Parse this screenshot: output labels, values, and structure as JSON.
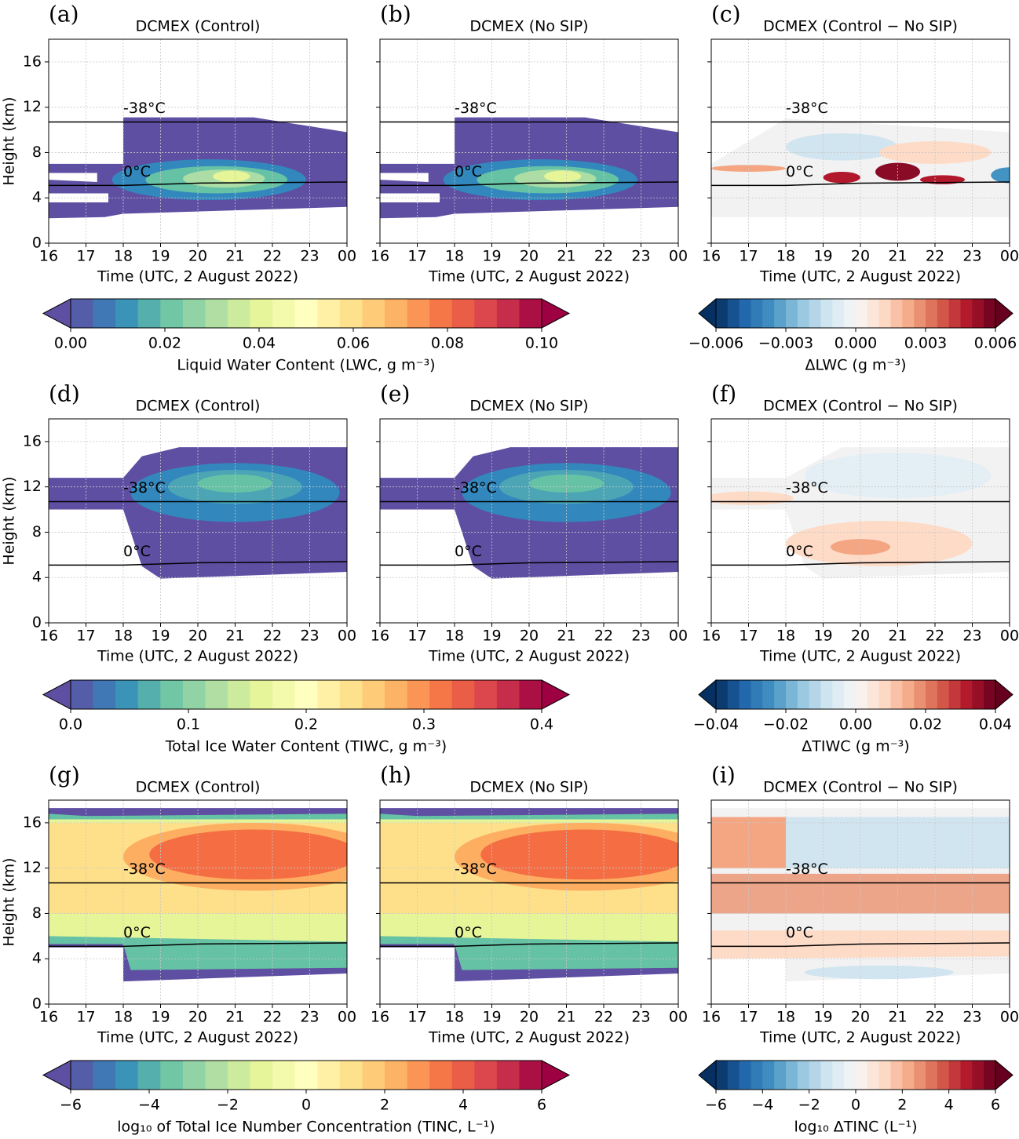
{
  "chart_data": [
    {
      "type": "contour",
      "letter": "(a)",
      "title": "DCMEX (Control)",
      "xlabel": "Time (UTC, 2 August 2022)",
      "ylabel": "Height (km)",
      "xlim": [
        16,
        24
      ],
      "xticks": [
        16,
        17,
        18,
        19,
        20,
        21,
        22,
        23,
        {
          "value": 24,
          "label": "00"
        }
      ],
      "ylim": [
        0,
        18
      ],
      "yticks": [
        0,
        4,
        8,
        12,
        16
      ],
      "grid": true,
      "isotherms": [
        {
          "name": "-38°C",
          "x": [
            16,
            24
          ],
          "values": [
            10.7,
            10.7
          ]
        },
        {
          "name": "0°C",
          "x": [
            16,
            18,
            20,
            22,
            24
          ],
          "values": [
            5.1,
            5.1,
            5.3,
            5.35,
            5.4
          ]
        }
      ]
    },
    {
      "type": "contour",
      "letter": "(b)",
      "title": "DCMEX (No SIP)",
      "xlabel": "Time (UTC, 2 August 2022)",
      "xlim": [
        16,
        24
      ],
      "xticks": [
        16,
        17,
        18,
        19,
        20,
        21,
        22,
        23,
        {
          "value": 24,
          "label": "00"
        }
      ],
      "ylim": [
        0,
        18
      ],
      "yticks": [
        0,
        4,
        8,
        12,
        16
      ],
      "grid": true,
      "isotherms": [
        {
          "name": "-38°C",
          "x": [
            16,
            24
          ],
          "values": [
            10.7,
            10.7
          ]
        },
        {
          "name": "0°C",
          "x": [
            16,
            18,
            20,
            22,
            24
          ],
          "values": [
            5.1,
            5.1,
            5.3,
            5.35,
            5.4
          ]
        }
      ]
    },
    {
      "type": "contour",
      "letter": "(c)",
      "title": "DCMEX (Control − No SIP)",
      "xlabel": "Time (UTC, 2 August 2022)",
      "xlim": [
        16,
        24
      ],
      "xticks": [
        16,
        17,
        18,
        19,
        20,
        21,
        22,
        23,
        {
          "value": 24,
          "label": "00"
        }
      ],
      "ylim": [
        0,
        18
      ],
      "yticks": [
        0,
        4,
        8,
        12,
        16
      ],
      "grid": true,
      "isotherms": [
        {
          "name": "-38°C",
          "x": [
            16,
            24
          ],
          "values": [
            10.7,
            10.7
          ]
        },
        {
          "name": "0°C",
          "x": [
            16,
            18,
            20,
            22,
            24
          ],
          "values": [
            5.1,
            5.1,
            5.3,
            5.35,
            5.4
          ]
        }
      ]
    },
    {
      "type": "contour",
      "letter": "(d)",
      "title": "DCMEX (Control)",
      "xlabel": "Time (UTC, 2 August 2022)",
      "ylabel": "Height (km)",
      "xlim": [
        16,
        24
      ],
      "xticks": [
        16,
        17,
        18,
        19,
        20,
        21,
        22,
        23,
        {
          "value": 24,
          "label": "00"
        }
      ],
      "ylim": [
        0,
        18
      ],
      "yticks": [
        0,
        4,
        8,
        12,
        16
      ],
      "grid": true,
      "isotherms": [
        {
          "name": "-38°C",
          "x": [
            16,
            24
          ],
          "values": [
            10.7,
            10.7
          ]
        },
        {
          "name": "0°C",
          "x": [
            16,
            18,
            20,
            22,
            24
          ],
          "values": [
            5.1,
            5.1,
            5.3,
            5.35,
            5.4
          ]
        }
      ]
    },
    {
      "type": "contour",
      "letter": "(e)",
      "title": "DCMEX (No SIP)",
      "xlabel": "Time (UTC, 2 August 2022)",
      "xlim": [
        16,
        24
      ],
      "xticks": [
        16,
        17,
        18,
        19,
        20,
        21,
        22,
        23,
        {
          "value": 24,
          "label": "00"
        }
      ],
      "ylim": [
        0,
        18
      ],
      "yticks": [
        0,
        4,
        8,
        12,
        16
      ],
      "grid": true,
      "isotherms": [
        {
          "name": "-38°C",
          "x": [
            16,
            24
          ],
          "values": [
            10.7,
            10.7
          ]
        },
        {
          "name": "0°C",
          "x": [
            16,
            18,
            20,
            22,
            24
          ],
          "values": [
            5.1,
            5.1,
            5.3,
            5.35,
            5.4
          ]
        }
      ]
    },
    {
      "type": "contour",
      "letter": "(f)",
      "title": "DCMEX (Control − No SIP)",
      "xlabel": "Time (UTC, 2 August 2022)",
      "xlim": [
        16,
        24
      ],
      "xticks": [
        16,
        17,
        18,
        19,
        20,
        21,
        22,
        23,
        {
          "value": 24,
          "label": "00"
        }
      ],
      "ylim": [
        0,
        18
      ],
      "yticks": [
        0,
        4,
        8,
        12,
        16
      ],
      "grid": true,
      "isotherms": [
        {
          "name": "-38°C",
          "x": [
            16,
            24
          ],
          "values": [
            10.7,
            10.7
          ]
        },
        {
          "name": "0°C",
          "x": [
            16,
            18,
            20,
            22,
            24
          ],
          "values": [
            5.1,
            5.1,
            5.3,
            5.35,
            5.4
          ]
        }
      ]
    },
    {
      "type": "contour",
      "letter": "(g)",
      "title": "DCMEX (Control)",
      "xlabel": "Time (UTC, 2 August 2022)",
      "ylabel": "Height (km)",
      "xlim": [
        16,
        24
      ],
      "xticks": [
        16,
        17,
        18,
        19,
        20,
        21,
        22,
        23,
        {
          "value": 24,
          "label": "00"
        }
      ],
      "ylim": [
        0,
        18
      ],
      "yticks": [
        0,
        4,
        8,
        12,
        16
      ],
      "grid": true,
      "isotherms": [
        {
          "name": "-38°C",
          "x": [
            16,
            24
          ],
          "values": [
            10.7,
            10.7
          ]
        },
        {
          "name": "0°C",
          "x": [
            16,
            18,
            20,
            22,
            24
          ],
          "values": [
            5.1,
            5.1,
            5.3,
            5.35,
            5.4
          ]
        }
      ]
    },
    {
      "type": "contour",
      "letter": "(h)",
      "title": "DCMEX (No SIP)",
      "xlabel": "Time (UTC, 2 August 2022)",
      "xlim": [
        16,
        24
      ],
      "xticks": [
        16,
        17,
        18,
        19,
        20,
        21,
        22,
        23,
        {
          "value": 24,
          "label": "00"
        }
      ],
      "ylim": [
        0,
        18
      ],
      "yticks": [
        0,
        4,
        8,
        12,
        16
      ],
      "grid": true,
      "isotherms": [
        {
          "name": "-38°C",
          "x": [
            16,
            24
          ],
          "values": [
            10.7,
            10.7
          ]
        },
        {
          "name": "0°C",
          "x": [
            16,
            18,
            20,
            22,
            24
          ],
          "values": [
            5.1,
            5.1,
            5.3,
            5.35,
            5.4
          ]
        }
      ]
    },
    {
      "type": "contour",
      "letter": "(i)",
      "title": "DCMEX (Control − No SIP)",
      "xlabel": "Time (UTC, 2 August 2022)",
      "xlim": [
        16,
        24
      ],
      "xticks": [
        16,
        17,
        18,
        19,
        20,
        21,
        22,
        23,
        {
          "value": 24,
          "label": "00"
        }
      ],
      "ylim": [
        0,
        18
      ],
      "yticks": [
        0,
        4,
        8,
        12,
        16
      ],
      "grid": true,
      "isotherms": [
        {
          "name": "-38°C",
          "x": [
            16,
            24
          ],
          "values": [
            10.7,
            10.7
          ]
        },
        {
          "name": "0°C",
          "x": [
            16,
            18,
            20,
            22,
            24
          ],
          "values": [
            5.1,
            5.1,
            5.3,
            5.35,
            5.4
          ]
        }
      ]
    }
  ],
  "colorbars": [
    {
      "label": "Liquid Water Content (LWC, g m⁻³)",
      "colormap": "Spectral_r",
      "lim": [
        0,
        0.1
      ],
      "ticks": [
        {
          "value": 0,
          "label": "0.00"
        },
        0.02,
        0.04,
        0.06,
        0.08,
        {
          "value": 0.1,
          "label": "0.10"
        }
      ]
    },
    {
      "label": "ΔLWC (g m⁻³)",
      "colormap": "RdBu_r",
      "lim": [
        -0.006,
        0.006
      ],
      "ticks": [
        {
          "value": -0.006,
          "label": "−0.006"
        },
        {
          "value": -0.003,
          "label": "−0.003"
        },
        {
          "value": 0,
          "label": "0.000"
        },
        0.003,
        0.006
      ]
    },
    {
      "label": "Total Ice Water Content (TIWC, g m⁻³)",
      "colormap": "Spectral_r",
      "lim": [
        0,
        0.4
      ],
      "ticks": [
        {
          "value": 0,
          "label": "0.0"
        },
        0.1,
        0.2,
        0.3,
        0.4
      ]
    },
    {
      "label": "ΔTIWC (g m⁻³)",
      "colormap": "RdBu_r",
      "lim": [
        -0.04,
        0.04
      ],
      "ticks": [
        {
          "value": -0.04,
          "label": "−0.04"
        },
        {
          "value": -0.02,
          "label": "−0.02"
        },
        {
          "value": 0,
          "label": "0.00"
        },
        0.02,
        0.04
      ]
    },
    {
      "label": "log₁₀ of Total Ice Number Concentration (TINC, L⁻¹)",
      "colormap": "Spectral_r",
      "lim": [
        -6,
        6
      ],
      "ticks": [
        {
          "value": -6,
          "label": "−6"
        },
        {
          "value": -4,
          "label": "−4"
        },
        {
          "value": -2,
          "label": "−2"
        },
        0,
        2,
        4,
        6
      ]
    },
    {
      "label": "log₁₀ ΔTINC (L⁻¹)",
      "colormap": "RdBu_r",
      "lim": [
        -6,
        6
      ],
      "ticks": [
        {
          "value": -6,
          "label": "−6"
        },
        {
          "value": -4,
          "label": "−4"
        },
        {
          "value": -2,
          "label": "−2"
        },
        0,
        2,
        4,
        6
      ]
    }
  ]
}
